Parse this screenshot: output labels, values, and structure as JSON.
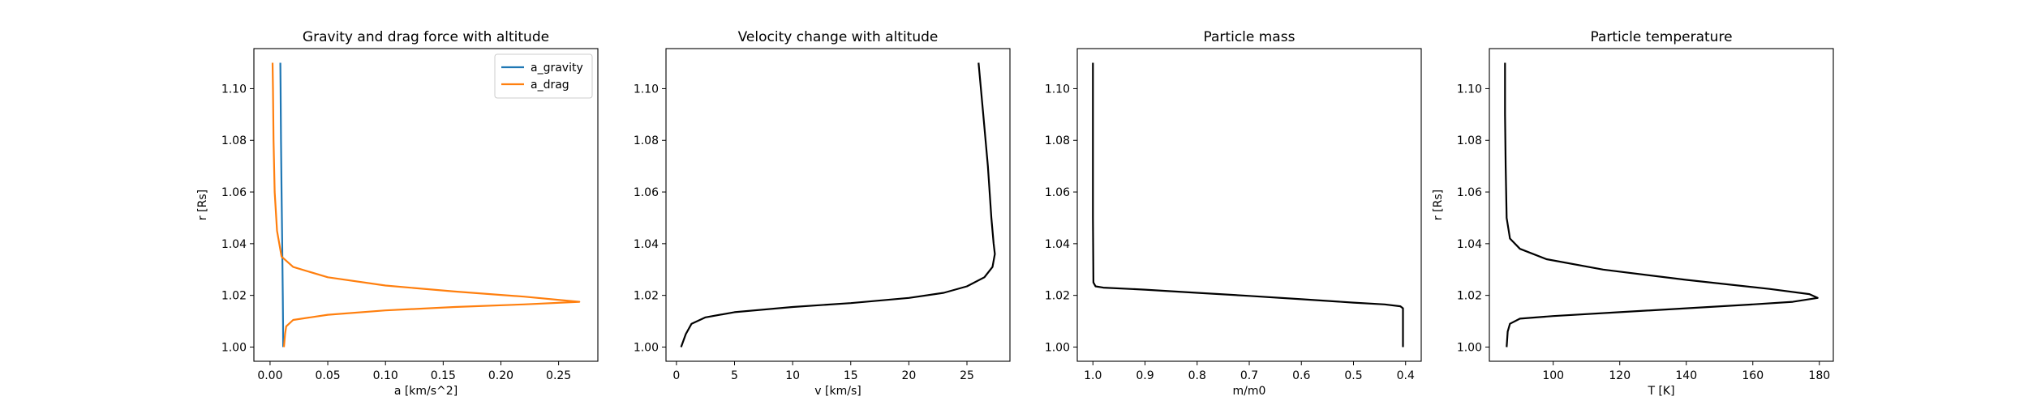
{
  "chart_data": [
    {
      "type": "line",
      "title": "Gravity and drag force with altitude",
      "xlabel": "a [km/s^2]",
      "ylabel": "r [Rs]",
      "xlim": [
        -0.014,
        0.284
      ],
      "ylim": [
        0.9945,
        1.1155
      ],
      "xticks": [
        0.0,
        0.05,
        0.1,
        0.15,
        0.2,
        0.25
      ],
      "xtick_labels": [
        "0.00",
        "0.05",
        "0.10",
        "0.15",
        "0.20",
        "0.25"
      ],
      "yticks": [
        1.0,
        1.02,
        1.04,
        1.06,
        1.08,
        1.1
      ],
      "ytick_labels": [
        "1.00",
        "1.02",
        "1.04",
        "1.06",
        "1.08",
        "1.10"
      ],
      "legend_position": "upper right",
      "series": [
        {
          "name": "a_gravity",
          "color": "#1f77b4",
          "points": [
            [
              0.0114,
              1.0
            ],
            [
              0.0112,
              1.01
            ],
            [
              0.011,
              1.02
            ],
            [
              0.0105,
              1.04
            ],
            [
              0.01,
              1.06
            ],
            [
              0.0095,
              1.08
            ],
            [
              0.0091,
              1.1
            ],
            [
              0.0089,
              1.11
            ]
          ]
        },
        {
          "name": "a_drag",
          "color": "#ff7f0e",
          "points": [
            [
              0.012,
              1.0
            ],
            [
              0.013,
              1.005
            ],
            [
              0.014,
              1.008
            ],
            [
              0.02,
              1.0105
            ],
            [
              0.05,
              1.0125
            ],
            [
              0.1,
              1.0142
            ],
            [
              0.16,
              1.0155
            ],
            [
              0.22,
              1.0165
            ],
            [
              0.268,
              1.0175
            ],
            [
              0.22,
              1.0195
            ],
            [
              0.16,
              1.0215
            ],
            [
              0.1,
              1.0238
            ],
            [
              0.05,
              1.027
            ],
            [
              0.02,
              1.031
            ],
            [
              0.01,
              1.035
            ],
            [
              0.006,
              1.045
            ],
            [
              0.004,
              1.06
            ],
            [
              0.003,
              1.08
            ],
            [
              0.0025,
              1.1
            ],
            [
              0.0022,
              1.11
            ]
          ]
        }
      ]
    },
    {
      "type": "line",
      "title": "Velocity change with altitude",
      "xlabel": "v [km/s]",
      "ylabel": "",
      "xlim": [
        -0.9,
        28.7
      ],
      "ylim": [
        0.9945,
        1.1155
      ],
      "xticks": [
        0,
        5,
        10,
        15,
        20,
        25
      ],
      "xtick_labels": [
        "0",
        "5",
        "10",
        "15",
        "20",
        "25"
      ],
      "yticks": [
        1.0,
        1.02,
        1.04,
        1.06,
        1.08,
        1.1
      ],
      "ytick_labels": [
        "1.00",
        "1.02",
        "1.04",
        "1.06",
        "1.08",
        "1.10"
      ],
      "series": [
        {
          "color": "#000000",
          "points": [
            [
              0.4,
              1.0
            ],
            [
              0.8,
              1.005
            ],
            [
              1.3,
              1.009
            ],
            [
              2.5,
              1.0115
            ],
            [
              5,
              1.0135
            ],
            [
              10,
              1.0155
            ],
            [
              15,
              1.017
            ],
            [
              20,
              1.019
            ],
            [
              23,
              1.021
            ],
            [
              25,
              1.0235
            ],
            [
              26.5,
              1.027
            ],
            [
              27.2,
              1.031
            ],
            [
              27.4,
              1.036
            ],
            [
              27.3,
              1.04
            ],
            [
              27.1,
              1.05
            ],
            [
              26.8,
              1.07
            ],
            [
              26.4,
              1.09
            ],
            [
              26.0,
              1.11
            ]
          ]
        }
      ]
    },
    {
      "type": "line",
      "title": "Particle mass",
      "xlabel": "m/m0",
      "ylabel": "",
      "xlim": [
        1.03,
        0.37
      ],
      "ylim": [
        0.9945,
        1.1155
      ],
      "xticks": [
        1.0,
        0.9,
        0.8,
        0.7,
        0.6,
        0.5,
        0.4
      ],
      "xtick_labels": [
        "1.0",
        "0.9",
        "0.8",
        "0.7",
        "0.6",
        "0.5",
        "0.4"
      ],
      "yticks": [
        1.0,
        1.02,
        1.04,
        1.06,
        1.08,
        1.1
      ],
      "ytick_labels": [
        "1.00",
        "1.02",
        "1.04",
        "1.06",
        "1.08",
        "1.10"
      ],
      "series": [
        {
          "color": "#000000",
          "points": [
            [
              1.0,
              1.11
            ],
            [
              1.0,
              1.05
            ],
            [
              0.999,
              1.025
            ],
            [
              0.995,
              1.0235
            ],
            [
              0.98,
              1.023
            ],
            [
              0.9,
              1.0222
            ],
            [
              0.8,
              1.021
            ],
            [
              0.7,
              1.0198
            ],
            [
              0.6,
              1.0185
            ],
            [
              0.5,
              1.0172
            ],
            [
              0.44,
              1.0165
            ],
            [
              0.41,
              1.0158
            ],
            [
              0.405,
              1.015
            ],
            [
              0.405,
              1.0
            ]
          ]
        }
      ]
    },
    {
      "type": "line",
      "title": "Particle temperature",
      "xlabel": "T [K]",
      "ylabel": "r [Rs]",
      "xlim": [
        80.8,
        184.2
      ],
      "ylim": [
        0.9945,
        1.1155
      ],
      "xticks": [
        100,
        120,
        140,
        160,
        180
      ],
      "xtick_labels": [
        "100",
        "120",
        "140",
        "160",
        "180"
      ],
      "yticks": [
        1.0,
        1.02,
        1.04,
        1.06,
        1.08,
        1.1
      ],
      "ytick_labels": [
        "1.00",
        "1.02",
        "1.04",
        "1.06",
        "1.08",
        "1.10"
      ],
      "series": [
        {
          "color": "#000000",
          "points": [
            [
              86,
              1.0
            ],
            [
              86.3,
              1.006
            ],
            [
              87,
              1.009
            ],
            [
              90,
              1.011
            ],
            [
              100,
              1.012
            ],
            [
              120,
              1.0135
            ],
            [
              140,
              1.015
            ],
            [
              160,
              1.0165
            ],
            [
              172,
              1.0175
            ],
            [
              179.5,
              1.019
            ],
            [
              177,
              1.0205
            ],
            [
              165,
              1.0225
            ],
            [
              140,
              1.026
            ],
            [
              115,
              1.03
            ],
            [
              98,
              1.034
            ],
            [
              90,
              1.038
            ],
            [
              87,
              1.042
            ],
            [
              86,
              1.05
            ],
            [
              85.7,
              1.07
            ],
            [
              85.5,
              1.09
            ],
            [
              85.5,
              1.11
            ]
          ]
        }
      ]
    }
  ]
}
